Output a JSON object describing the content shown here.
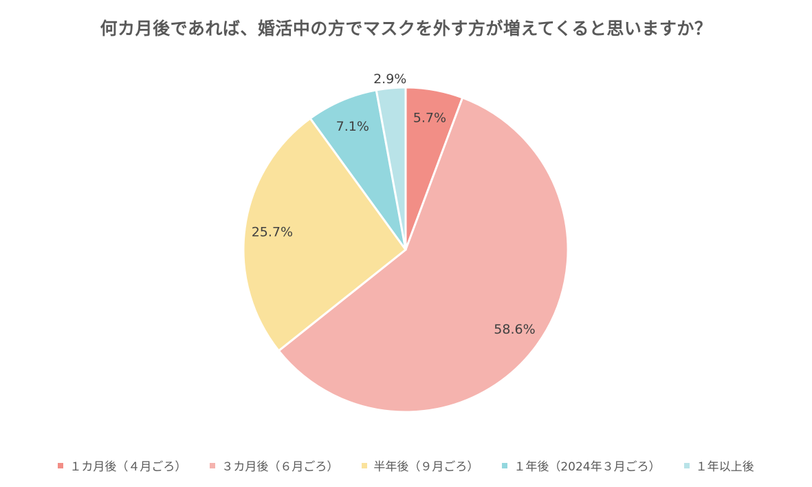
{
  "chart_data": {
    "type": "pie",
    "title": "何カ月後であれば、婚活中の方でマスクを外す方が増えてくると思いますか？",
    "categories": [
      "１カ月後（４月ごろ）",
      "３カ月後（６月ごろ）",
      "半年後（９月ごろ）",
      "１年後（2024年３月ごろ）",
      "１年以上後"
    ],
    "values": [
      5.7,
      58.6,
      25.7,
      7.1,
      2.9
    ],
    "labels": [
      "5.7%",
      "58.6%",
      "25.7%",
      "7.1%",
      "2.9%"
    ],
    "colors": [
      "#F28E86",
      "#F5B3AE",
      "#FAE29C",
      "#93D7DE",
      "#B9E3E8"
    ],
    "legend": "bottom",
    "start": "top, clockwise"
  }
}
